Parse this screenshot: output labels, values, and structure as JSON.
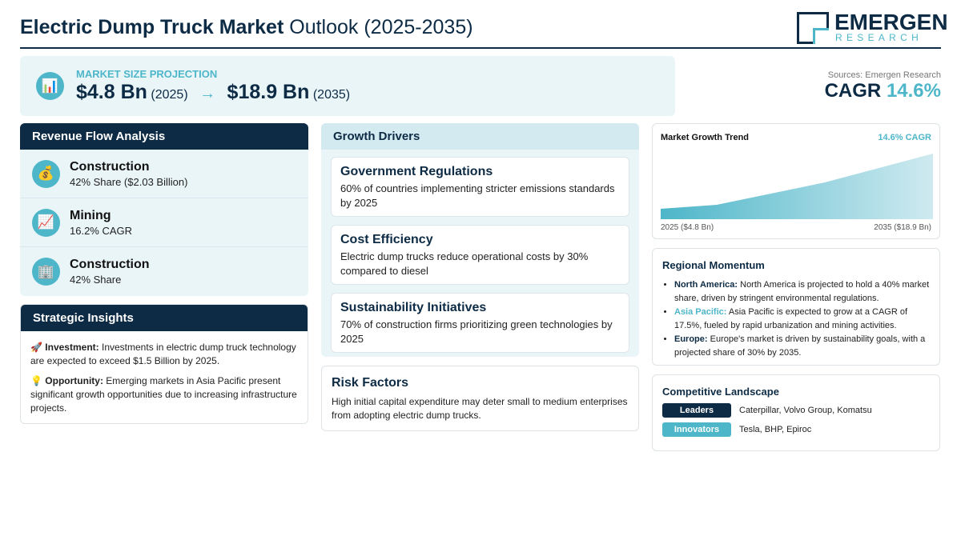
{
  "header": {
    "title_bold": "Electric Dump Truck Market",
    "title_rest": "Outlook (2025-2035)",
    "logo_main": "EMERGEN",
    "logo_sub": "RESEARCH"
  },
  "projection": {
    "icon": "📊",
    "label": "MARKET SIZE PROJECTION",
    "start_value": "$4.8 Bn",
    "start_year": "(2025)",
    "arrow": "→",
    "end_value": "$18.9 Bn",
    "end_year": "(2035)"
  },
  "summary": {
    "sources": "Sources: Emergen Research",
    "cagr_label": "CAGR",
    "cagr_value": "14.6%"
  },
  "revenue_flow": {
    "title": "Revenue Flow Analysis",
    "items": [
      {
        "icon": "💰",
        "name": "Construction",
        "detail": "42% Share ($2.03 Billion)"
      },
      {
        "icon": "📈",
        "name": "Mining",
        "detail": "16.2% CAGR"
      },
      {
        "icon": "🏢",
        "name": "Construction",
        "detail": "42% Share"
      }
    ]
  },
  "strategic_insights": {
    "title": "Strategic Insights",
    "items": [
      {
        "icon": "🚀",
        "label": "Investment:",
        "text": "Investments in electric dump truck technology are expected to exceed $1.5 Billion by 2025."
      },
      {
        "icon": "💡",
        "label": "Opportunity:",
        "text": "Emerging markets in Asia Pacific present significant growth opportunities due to increasing infrastructure projects."
      }
    ]
  },
  "growth_drivers": {
    "title": "Growth Drivers",
    "items": [
      {
        "title": "Government Regulations",
        "text": "60% of countries implementing stricter emissions standards by 2025"
      },
      {
        "title": "Cost Efficiency",
        "text": "Electric dump trucks reduce operational costs by 30% compared to diesel"
      },
      {
        "title": "Sustainability Initiatives",
        "text": "70% of construction firms prioritizing green technologies by 2025"
      }
    ]
  },
  "risk_factors": {
    "title": "Risk Factors",
    "text": "High initial capital expenditure may deter small to medium enterprises from adopting electric dump trucks."
  },
  "market_trend": {
    "title": "Market Growth Trend",
    "cagr": "14.6% CAGR",
    "start_label": "2025 ($4.8 Bn)",
    "end_label": "2035 ($18.9 Bn)"
  },
  "regional": {
    "title": "Regional Momentum",
    "items": [
      {
        "region": "North America:",
        "text": "North America is projected to hold a 40% market share, driven by stringent environmental regulations."
      },
      {
        "region": "Asia Pacific:",
        "text": "Asia Pacific is expected to grow at a CAGR of 17.5%, fueled by rapid urbanization and mining activities."
      },
      {
        "region": "Europe:",
        "text": "Europe's market is driven by sustainability goals, with a projected share of 30% by 2035."
      }
    ]
  },
  "competitive": {
    "title": "Competitive Landscape",
    "rows": [
      {
        "label": "Leaders",
        "companies": "Caterpillar, Volvo Group, Komatsu"
      },
      {
        "label": "Innovators",
        "companies": "Tesla, BHP, Epiroc"
      }
    ]
  }
}
